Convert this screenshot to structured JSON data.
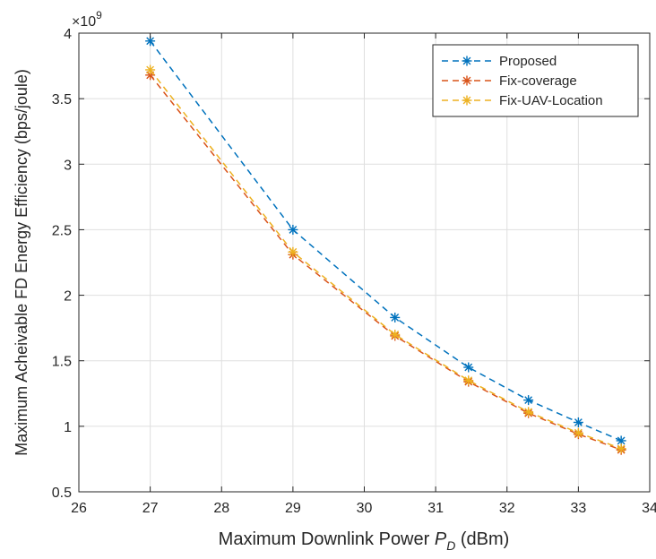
{
  "chart_data": {
    "type": "line",
    "xlabel_prefix": "Maximum Downlink Power ",
    "xlabel_var": "P",
    "xlabel_sub": "D",
    "xlabel_suffix": " (dBm)",
    "ylabel": "Maximum Acheivable FD Energy Efficiency (bps/joule)",
    "y_exponent_base": "×10",
    "y_exponent": "9",
    "xlim": [
      26,
      34
    ],
    "ylim": [
      0.5,
      4
    ],
    "xticks": [
      26,
      27,
      28,
      29,
      30,
      31,
      32,
      33,
      34
    ],
    "yticks": [
      0.5,
      1,
      1.5,
      2,
      2.5,
      3,
      3.5,
      4
    ],
    "xtick_labels": [
      "26",
      "27",
      "28",
      "29",
      "30",
      "31",
      "32",
      "33",
      "34"
    ],
    "ytick_labels": [
      "0.5",
      "1",
      "1.5",
      "2",
      "2.5",
      "3",
      "3.5",
      "4"
    ],
    "grid": true,
    "legend_position": "top-right",
    "x": [
      27,
      29,
      30.43,
      31.46,
      32.3,
      33,
      33.6
    ],
    "series": [
      {
        "name": "Proposed",
        "color": "#0072BD",
        "marker": "asterisk",
        "values": [
          3.94,
          2.5,
          1.83,
          1.45,
          1.2,
          1.03,
          0.89
        ]
      },
      {
        "name": "Fix-coverage",
        "color": "#D95319",
        "marker": "asterisk",
        "values": [
          3.68,
          2.31,
          1.69,
          1.34,
          1.1,
          0.94,
          0.82
        ]
      },
      {
        "name": "Fix-UAV-Location",
        "color": "#EDB120",
        "marker": "asterisk",
        "values": [
          3.72,
          2.33,
          1.7,
          1.35,
          1.11,
          0.95,
          0.83
        ]
      }
    ]
  }
}
